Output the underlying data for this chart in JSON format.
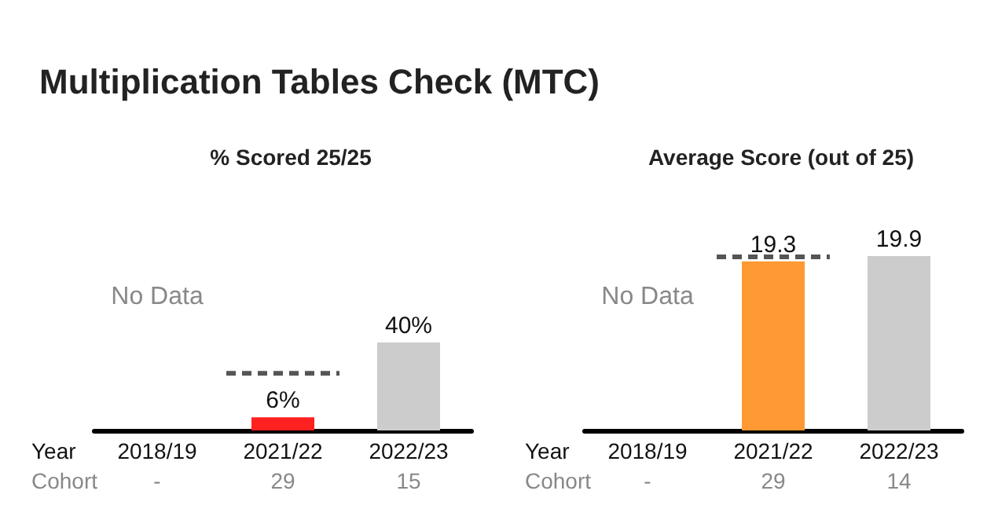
{
  "chart_data": [
    {
      "type": "bar",
      "title": "Multiplication Tables Check (MTC)",
      "subtitle": "% Scored 25/25",
      "categories": [
        "2018/19",
        "2021/22",
        "2022/23"
      ],
      "values": [
        null,
        6,
        40
      ],
      "colors": [
        "#cccccc",
        "#ff2020",
        "#cccccc"
      ],
      "value_labels": [
        null,
        "6%",
        "40%"
      ],
      "tick_labels": "x",
      "grid": false,
      "ref_lines": [
        {
          "axis": "y",
          "value": 26,
          "color": "#555555",
          "line_style": "dashed"
        }
      ],
      "annotations": [
        "No Data",
        "Year",
        "Cohort",
        "-",
        "29",
        "15"
      ]
    },
    {
      "type": "bar",
      "subtitle": "Average Score (out of 25)",
      "categories": [
        "2018/19",
        "2021/22",
        "2022/23"
      ],
      "values": [
        null,
        19.3,
        19.9
      ],
      "colors": [
        "#cccccc",
        "#ff9933",
        "#cccccc"
      ],
      "data_labels": true,
      "tick_labels": "x",
      "grid": false,
      "ref_lines": [
        {
          "axis": "y",
          "value": 19.8,
          "color": "#555555",
          "line_style": "dashed"
        }
      ],
      "annotations": [
        "No Data",
        "Year",
        "Cohort",
        "-",
        "29",
        "14"
      ]
    }
  ]
}
